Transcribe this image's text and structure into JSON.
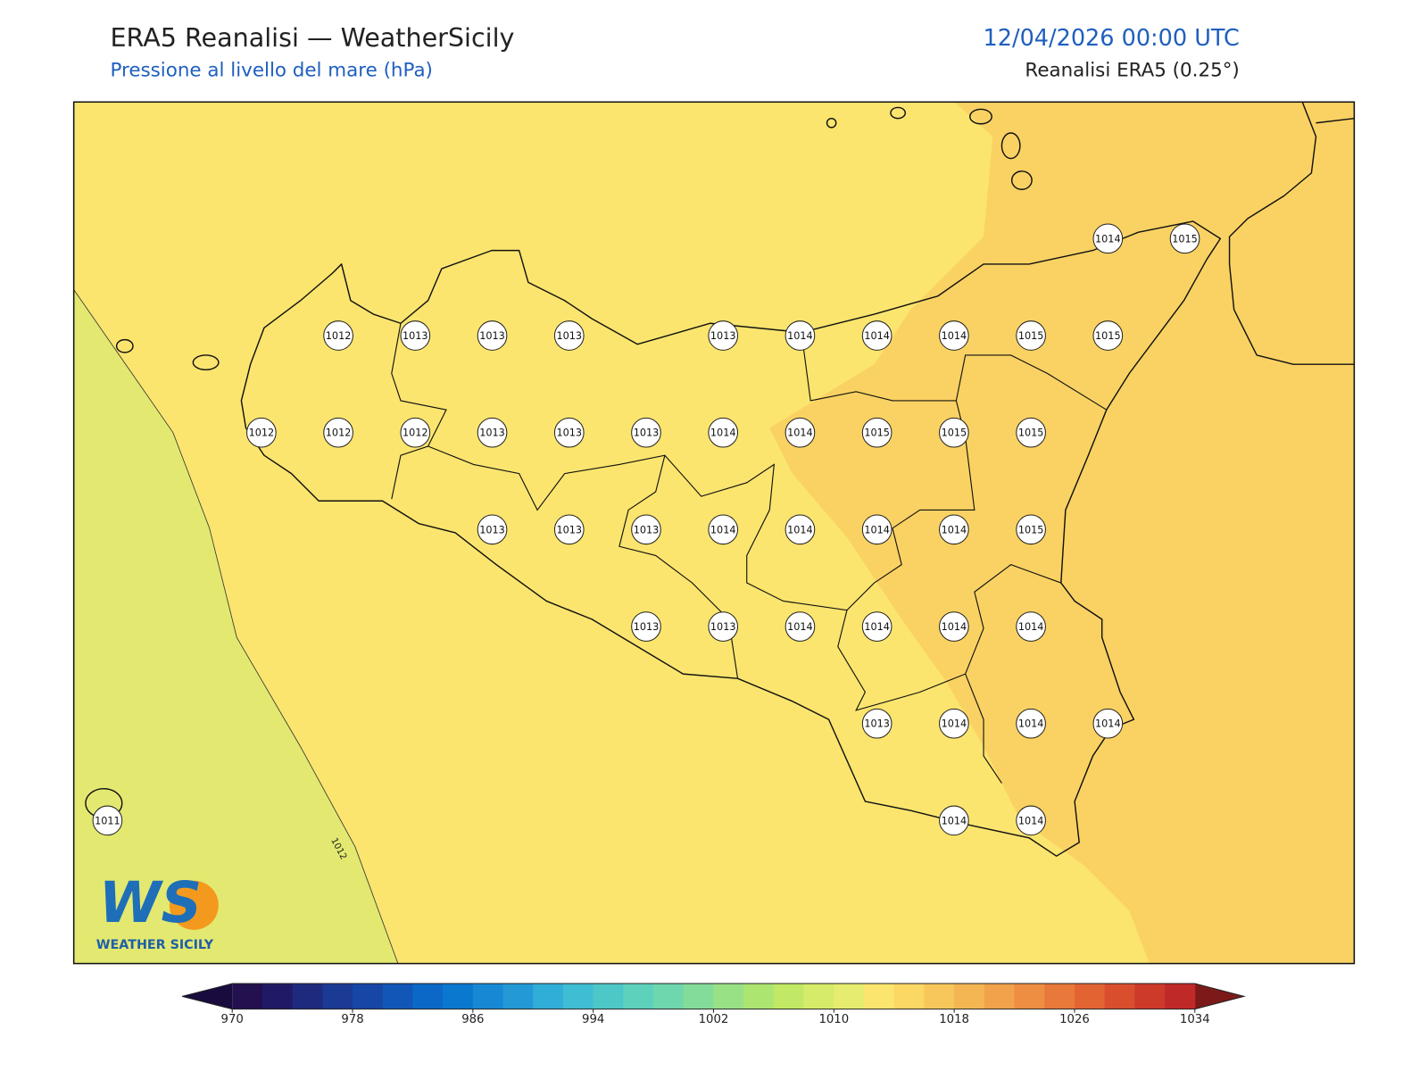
{
  "header": {
    "title": "ERA5 Reanalisi — WeatherSicily",
    "subtitle": "Pressione al livello del mare (hPa)",
    "datetime": "12/04/2026 00:00 UTC",
    "source": "Reanalisi ERA5 (0.25°)"
  },
  "map": {
    "contour_label": "1012",
    "logo": {
      "letters": "WS",
      "name": "WEATHER SICILY"
    },
    "fields": {
      "base": "#fbe56e",
      "east": "#fad263",
      "west": "#e3e970"
    },
    "points": [
      {
        "value": 1014
      },
      {
        "value": 1015
      },
      {
        "value": 1012
      },
      {
        "value": 1013
      },
      {
        "value": 1013
      },
      {
        "value": 1013
      },
      {
        "value": 1013
      },
      {
        "value": 1014
      },
      {
        "value": 1014
      },
      {
        "value": 1014
      },
      {
        "value": 1015
      },
      {
        "value": 1015
      },
      {
        "value": 1012
      },
      {
        "value": 1012
      },
      {
        "value": 1012
      },
      {
        "value": 1013
      },
      {
        "value": 1013
      },
      {
        "value": 1013
      },
      {
        "value": 1014
      },
      {
        "value": 1014
      },
      {
        "value": 1015
      },
      {
        "value": 1015
      },
      {
        "value": 1015
      },
      {
        "value": 1013
      },
      {
        "value": 1013
      },
      {
        "value": 1013
      },
      {
        "value": 1014
      },
      {
        "value": 1014
      },
      {
        "value": 1014
      },
      {
        "value": 1014
      },
      {
        "value": 1015
      },
      {
        "value": 1013
      },
      {
        "value": 1013
      },
      {
        "value": 1014
      },
      {
        "value": 1014
      },
      {
        "value": 1014
      },
      {
        "value": 1014
      },
      {
        "value": 1013
      },
      {
        "value": 1014
      },
      {
        "value": 1014
      },
      {
        "value": 1014
      },
      {
        "value": 1011
      },
      {
        "value": 1014
      },
      {
        "value": 1014
      }
    ]
  },
  "colorbar": {
    "lim": [
      970,
      1034
    ],
    "ticks": [
      970,
      978,
      986,
      994,
      1002,
      1010,
      1018,
      1026,
      1034
    ],
    "under": "#1a0b3f",
    "over": "#7c1a1a",
    "colors": [
      "#22104f",
      "#201a66",
      "#1e2a7d",
      "#1b3a94",
      "#1747a6",
      "#1257b8",
      "#0c68c6",
      "#0b78cf",
      "#1789d4",
      "#2399d6",
      "#31aed8",
      "#3fbdd3",
      "#4ec7c8",
      "#5ed1bd",
      "#6fd7ad",
      "#84dc9a",
      "#98e185",
      "#ade571",
      "#c2e965",
      "#d6eb69",
      "#e6ec70",
      "#fbe56e",
      "#fbd763",
      "#f8c75b",
      "#f4b553",
      "#f1a24b",
      "#ed8e42",
      "#e8793a",
      "#e26432",
      "#d94f2d",
      "#cd3a2a",
      "#bf2a28"
    ]
  }
}
